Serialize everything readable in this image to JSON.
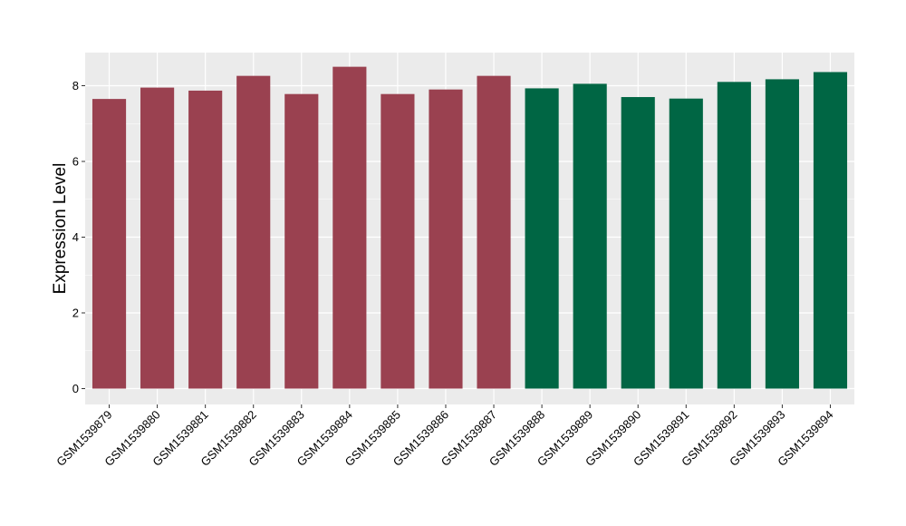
{
  "chart_data": {
    "type": "bar",
    "title": "",
    "xlabel": "",
    "ylabel": "Expression Level",
    "ylim": [
      0,
      8.9
    ],
    "yticks": [
      0,
      2,
      4,
      6,
      8
    ],
    "grid": true,
    "legend": "none",
    "categories": [
      "GSM1539879",
      "GSM1539880",
      "GSM1539881",
      "GSM1539882",
      "GSM1539883",
      "GSM1539884",
      "GSM1539885",
      "GSM1539886",
      "GSM1539887",
      "GSM1539888",
      "GSM1539889",
      "GSM1539890",
      "GSM1539891",
      "GSM1539892",
      "GSM1539893",
      "GSM1539894"
    ],
    "values": [
      7.65,
      7.95,
      7.87,
      8.26,
      7.78,
      8.5,
      7.78,
      7.9,
      8.26,
      7.93,
      8.05,
      7.7,
      7.66,
      8.1,
      8.17,
      8.36
    ],
    "bar_colors": [
      "#9a4150",
      "#9a4150",
      "#9a4150",
      "#9a4150",
      "#9a4150",
      "#9a4150",
      "#9a4150",
      "#9a4150",
      "#9a4150",
      "#006644",
      "#006644",
      "#006644",
      "#006644",
      "#006644",
      "#006644",
      "#006644"
    ],
    "panel_background": "#ebebeb",
    "grid_color": "#ffffff"
  }
}
